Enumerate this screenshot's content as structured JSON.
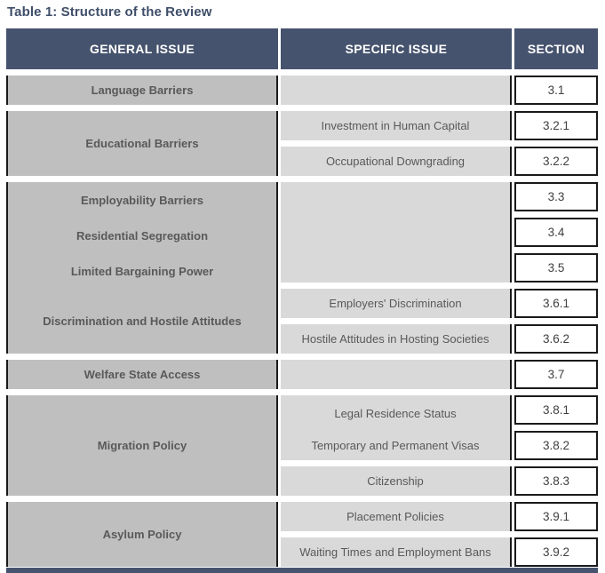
{
  "title": "Table 1: Structure of the Review",
  "colors": {
    "header_bg": "#46536e",
    "title_color": "#3f4e69",
    "general_bg": "#bfbfbf",
    "specific_bg": "#d9d9d9",
    "section_bg": "#ffffff",
    "border_dark": "#1a1a1a",
    "general_text": "#595959",
    "specific_text": "#595959",
    "section_text": "#3f3f3f"
  },
  "table": {
    "headers": [
      "GENERAL ISSUE",
      "SPECIFIC ISSUE",
      "SECTION"
    ],
    "general": [
      {
        "label": "Language Barriers"
      },
      {
        "label": "Educational Barriers"
      },
      {
        "labels": [
          "Employability Barriers",
          "Residential Segregation",
          "Limited Bargaining Power",
          "Discrimination and Hostile Attitudes"
        ]
      },
      {
        "label": "Welfare State Access"
      },
      {
        "label": "Migration Policy"
      },
      {
        "label": "Asylum Policy"
      }
    ],
    "specific": [
      {
        "label": ""
      },
      {
        "label": "Investment in Human Capital"
      },
      {
        "label": "Occupational Downgrading"
      },
      {
        "label": ""
      },
      {
        "label": "Employers' Discrimination"
      },
      {
        "label": "Hostile Attitudes in Hosting Societies"
      },
      {
        "label": ""
      },
      {
        "labels": [
          "Legal Residence Status",
          "Temporary and Permanent Visas"
        ]
      },
      {
        "label": "Citizenship"
      },
      {
        "label": "Placement Policies"
      },
      {
        "label": "Waiting Times and Employment Bans"
      }
    ],
    "sections": [
      "3.1",
      "3.2.1",
      "3.2.2",
      "3.3",
      "3.4",
      "3.5",
      "3.6.1",
      "3.6.2",
      "3.7",
      "3.8.1",
      "3.8.2",
      "3.8.3",
      "3.9.1",
      "3.9.2"
    ]
  }
}
